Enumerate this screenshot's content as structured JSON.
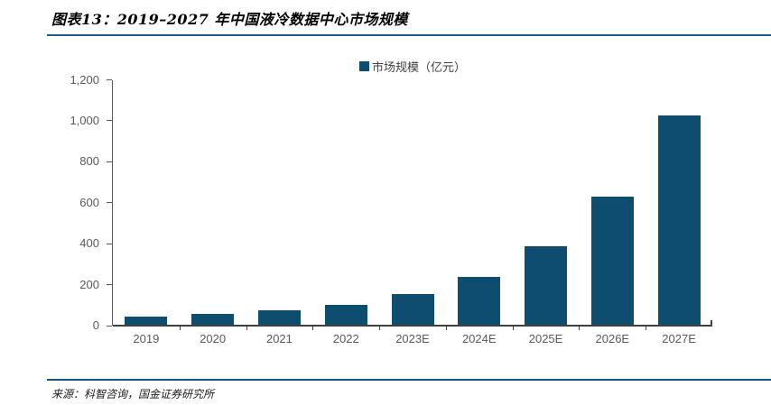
{
  "figure": {
    "title": "图表13：2019–2027 年中国液冷数据中心市场规模",
    "source": "来源：科智咨询，国金证券研究所"
  },
  "chart_data": {
    "type": "bar",
    "title": "图表13：2019–2027 年中国液冷数据中心市场规模",
    "legend_entries": [
      "市场规模（亿元）"
    ],
    "legend_position": "top-center",
    "categories": [
      "2019",
      "2020",
      "2021",
      "2022",
      "2023E",
      "2024E",
      "2025E",
      "2026E",
      "2027E"
    ],
    "series": [
      {
        "name": "市场规模（亿元）",
        "values": [
          45,
          57,
          77,
          100,
          154,
          240,
          386,
          630,
          1025
        ]
      }
    ],
    "ylabel": "",
    "xlabel": "",
    "unit": "亿元",
    "ylim": [
      0,
      1200
    ],
    "ytick_step": 200,
    "ytick_labels": [
      "0",
      "200",
      "400",
      "600",
      "800",
      "1,000",
      "1,200"
    ],
    "grid": false,
    "bar_color": "#0e4d70"
  },
  "colors": {
    "bar": "#0e4d70",
    "title_rule": "#1e5c8b",
    "footer_rule": "#14537d",
    "axis": "#404040",
    "tick_label": "#595959"
  }
}
